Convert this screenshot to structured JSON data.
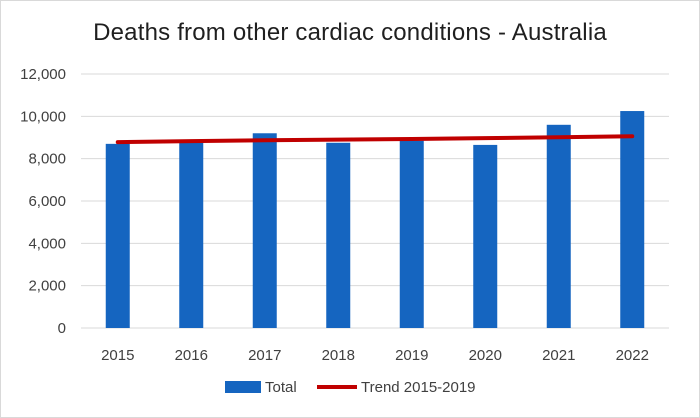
{
  "chart_data": {
    "type": "bar",
    "title": "Deaths from other cardiac conditions - Australia",
    "xlabel": "",
    "ylabel": "",
    "categories": [
      "2015",
      "2016",
      "2017",
      "2018",
      "2019",
      "2020",
      "2021",
      "2022"
    ],
    "series": [
      {
        "name": "Total",
        "type": "bar",
        "color": "#1565c0",
        "values": [
          8700,
          8800,
          9200,
          8750,
          8850,
          8650,
          9600,
          10250
        ]
      },
      {
        "name": "Trend 2015-2019",
        "type": "line",
        "color": "#c00000",
        "values": [
          8780,
          8830,
          8870,
          8900,
          8930,
          8970,
          9010,
          9060
        ]
      }
    ],
    "ylim": [
      0,
      12000
    ],
    "yticks": [
      "0",
      "2,000",
      "4,000",
      "6,000",
      "8,000",
      "10,000",
      "12,000"
    ],
    "ytick_values": [
      0,
      2000,
      4000,
      6000,
      8000,
      10000,
      12000
    ],
    "grid": true,
    "legend_position": "bottom"
  }
}
